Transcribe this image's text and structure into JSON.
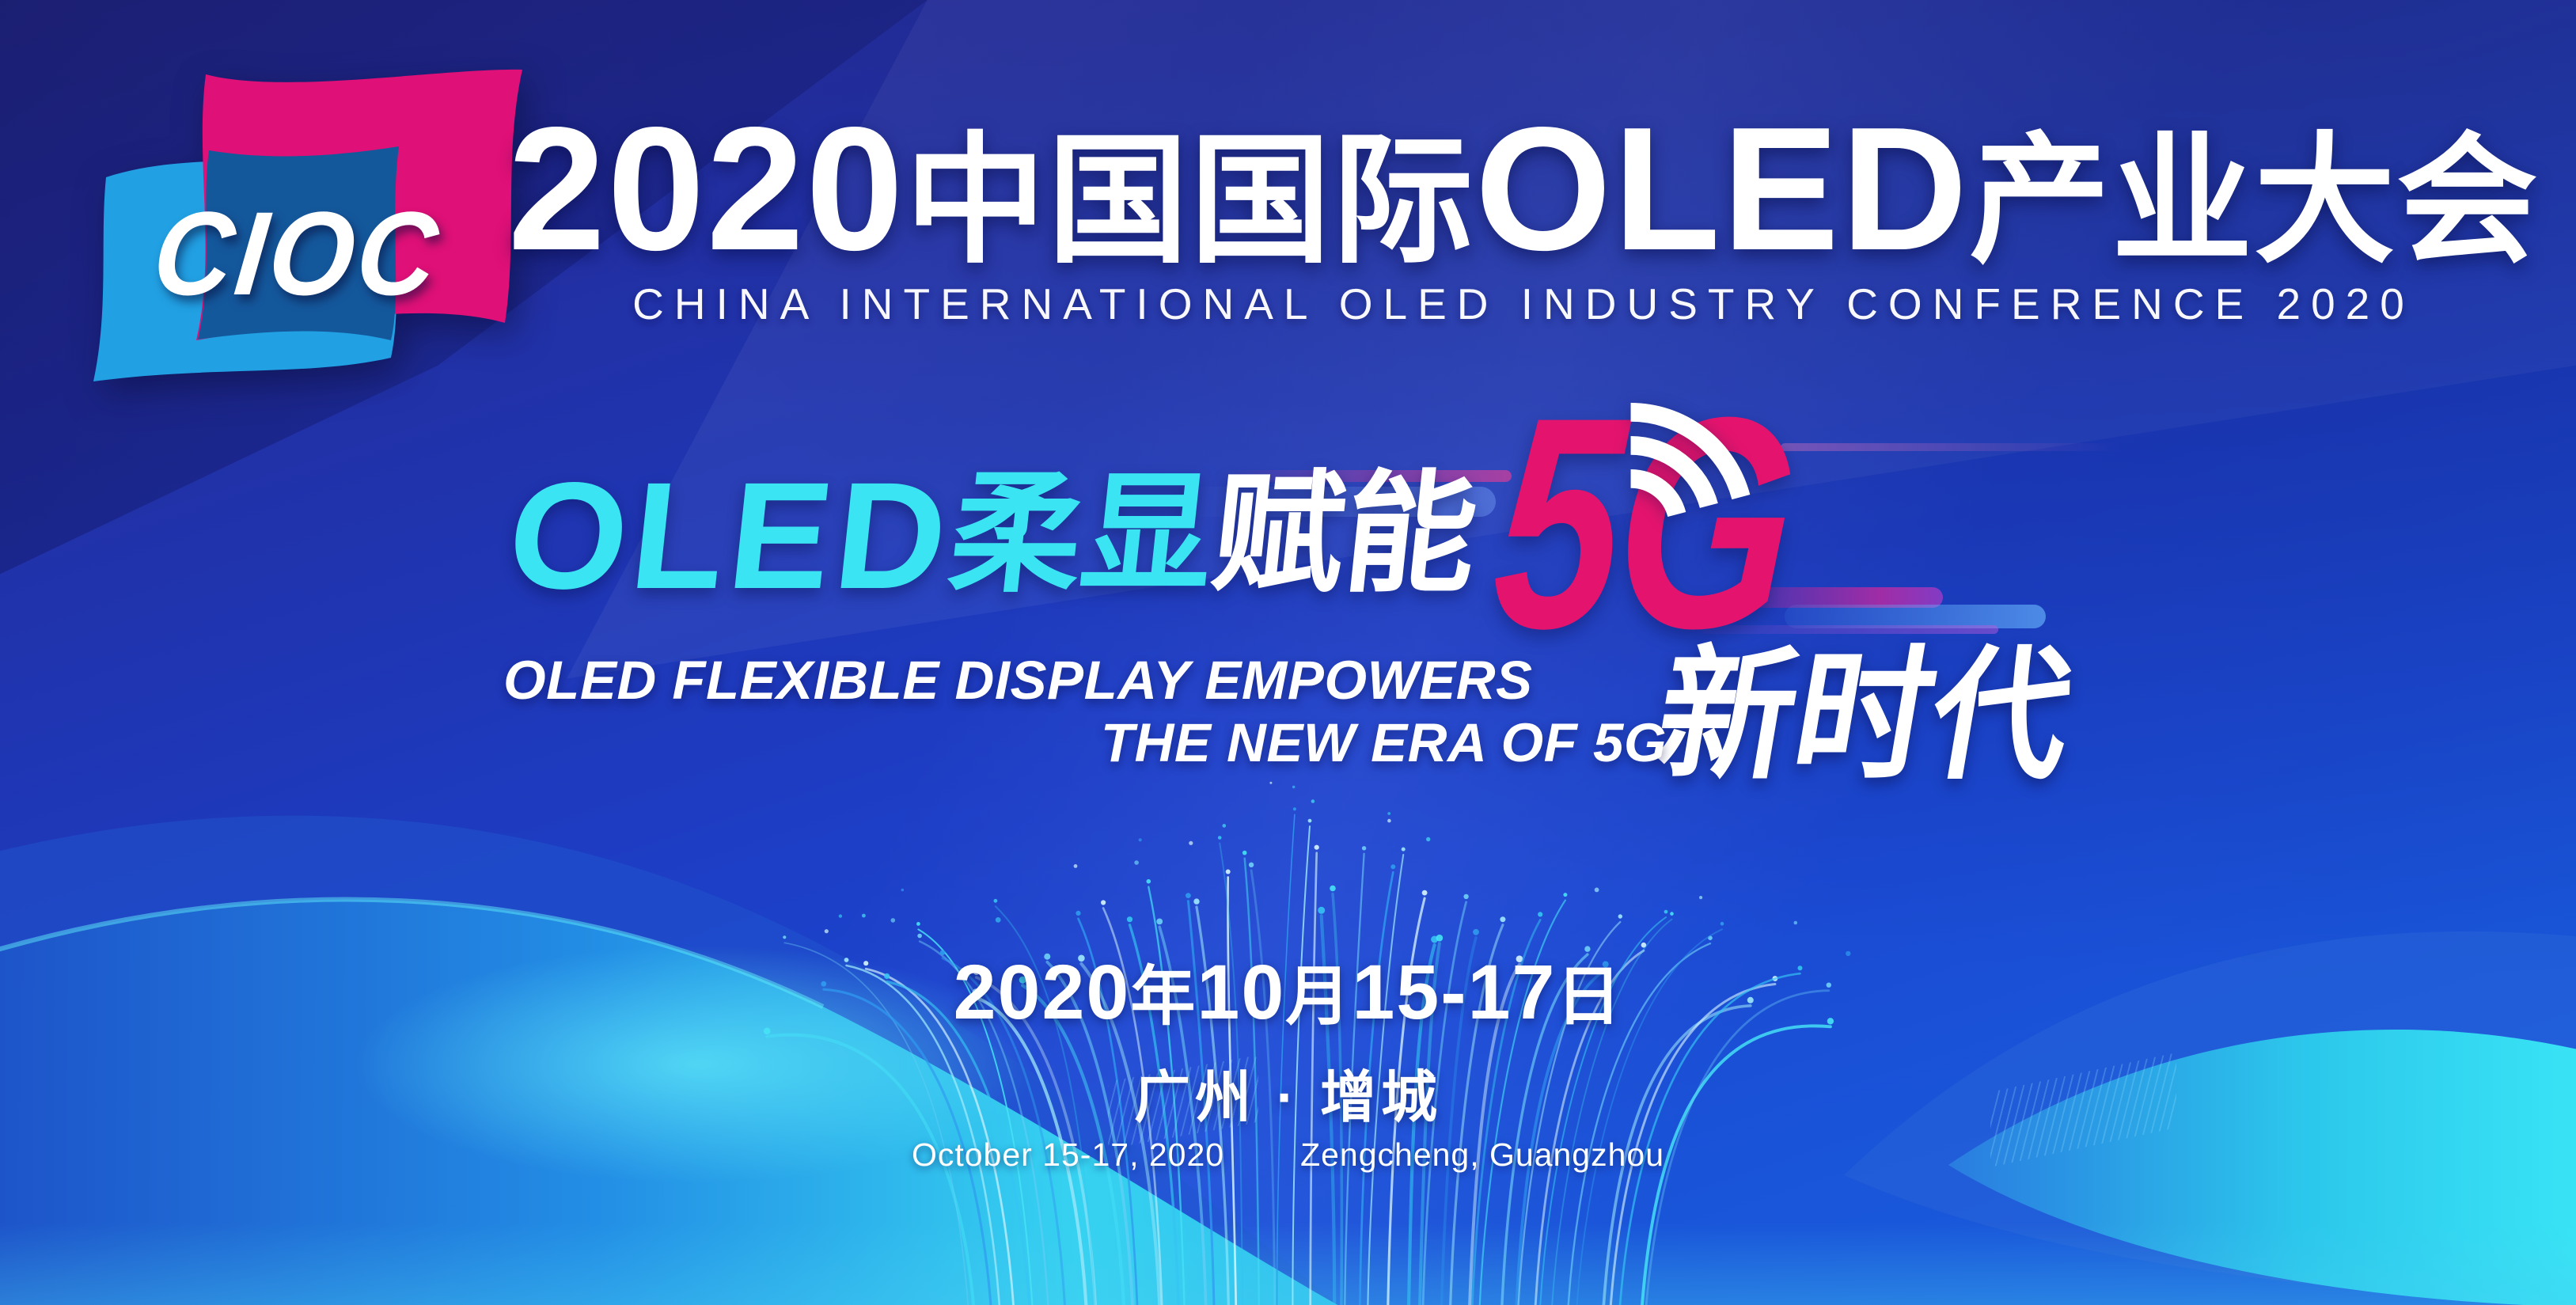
{
  "logo": {
    "text": "CIOC"
  },
  "header": {
    "title_parts": [
      "2020",
      "中国国际",
      "OLED",
      "产业大会"
    ],
    "subtitle": "CHINA INTERNATIONAL OLED INDUSTRY CONFERENCE 2020"
  },
  "slogan": {
    "latin": "OLED",
    "cyan_cn": "柔显",
    "white_cn": "赋能",
    "number": "5G",
    "era": "新时代",
    "english_line1": "OLED FLEXIBLE DISPLAY EMPOWERS",
    "english_line2": "THE NEW ERA OF 5G"
  },
  "event": {
    "date_parts": [
      "2020",
      "年",
      "10",
      "月",
      "15-17",
      "日"
    ],
    "venue_cn": "广州 · 增城",
    "date_en": "October 15-17, 2020",
    "venue_en": "Zengcheng, Guangzhou"
  },
  "icons": {
    "wifi": "wifi-signal-icon"
  },
  "colors": {
    "accent_pink": "#e4146e",
    "accent_cyan": "#3be4f2",
    "logo_blue": "#21a0e3",
    "logo_magenta": "#df1077",
    "deep_blue": "#1d3ec6"
  }
}
